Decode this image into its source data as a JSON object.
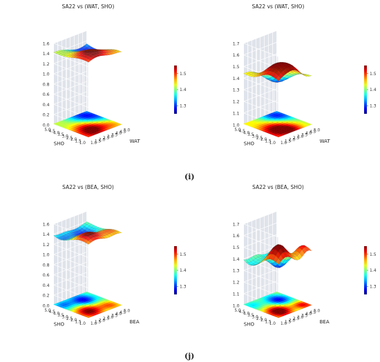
{
  "captions": [
    "(i)",
    "(j)"
  ],
  "chart_data": [
    {
      "type": "surface3d",
      "title": "SA22 vs (WAT, SHO)",
      "xlabel": "WAT",
      "ylabel": "SHO",
      "x_ticks": [
        "1.0",
        "1.5",
        "2.0",
        "2.5",
        "3.0",
        "3.5",
        "4.0",
        "4.5",
        "5.0"
      ],
      "y_ticks": [
        "1.0",
        "1.5",
        "2.0",
        "2.5",
        "3.0",
        "3.5",
        "4.0",
        "4.5",
        "5.0"
      ],
      "z_ticks": [
        "0.0",
        "0.2",
        "0.4",
        "0.6",
        "0.8",
        "1.0",
        "1.2",
        "1.4",
        "1.6"
      ],
      "zlim": [
        0.0,
        1.6
      ],
      "colorbar_ticks": [
        "1.5",
        "1.4",
        "1.3"
      ],
      "colorbar_range": [
        1.25,
        1.55
      ],
      "surface_offset": 1.4,
      "surface_scale": 0.35,
      "hotspots": [
        {
          "x": 2.2,
          "y": 2.0,
          "amp": 1.0,
          "sigma": 1.2
        },
        {
          "x": 4.2,
          "y": 4.0,
          "amp": -0.7,
          "sigma": 1.1
        },
        {
          "x": 4.5,
          "y": 1.5,
          "amp": 0.3,
          "sigma": 0.8
        }
      ]
    },
    {
      "type": "surface3d",
      "title": "SA22 vs (WAT, SHO)",
      "xlabel": "WAT",
      "ylabel": "SHO",
      "x_ticks": [
        "1.0",
        "1.5",
        "2.0",
        "2.5",
        "3.0",
        "3.5",
        "4.0",
        "4.5",
        "5.0"
      ],
      "y_ticks": [
        "1.0",
        "1.5",
        "2.0",
        "2.5",
        "3.0",
        "3.5",
        "4.0",
        "4.5",
        "5.0"
      ],
      "z_ticks": [
        "1.0",
        "1.1",
        "1.2",
        "1.3",
        "1.4",
        "1.5",
        "1.6",
        "1.7"
      ],
      "zlim": [
        1.0,
        1.7
      ],
      "colorbar_ticks": [
        "1.5",
        "1.4",
        "1.3"
      ],
      "colorbar_range": [
        1.25,
        1.55
      ],
      "surface_offset": 1.42,
      "surface_scale": 0.32,
      "hotspots": [
        {
          "x": 2.0,
          "y": 2.2,
          "amp": 1.0,
          "sigma": 1.1
        },
        {
          "x": 4.3,
          "y": 4.2,
          "amp": -0.8,
          "sigma": 1.0
        },
        {
          "x": 3.2,
          "y": 1.2,
          "amp": 0.4,
          "sigma": 0.7
        }
      ]
    },
    {
      "type": "surface3d",
      "title": "SA22 vs (BEA, SHO)",
      "xlabel": "BEA",
      "ylabel": "SHO",
      "x_ticks": [
        "1.0",
        "1.5",
        "2.0",
        "2.5",
        "3.0",
        "3.5",
        "4.0",
        "4.5",
        "5.0"
      ],
      "y_ticks": [
        "1.0",
        "1.5",
        "2.0",
        "2.5",
        "3.0",
        "3.5",
        "4.0",
        "4.5",
        "5.0"
      ],
      "z_ticks": [
        "0.0",
        "0.2",
        "0.4",
        "0.6",
        "0.8",
        "1.0",
        "1.2",
        "1.4",
        "1.6"
      ],
      "zlim": [
        0.0,
        1.6
      ],
      "colorbar_ticks": [
        "1.5",
        "1.4",
        "1.3"
      ],
      "colorbar_range": [
        1.25,
        1.55
      ],
      "surface_offset": 1.4,
      "surface_scale": 0.33,
      "hotspots": [
        {
          "x": 2.0,
          "y": 2.0,
          "amp": 1.0,
          "sigma": 0.9
        },
        {
          "x": 3.5,
          "y": 3.8,
          "amp": -0.8,
          "sigma": 0.8
        },
        {
          "x": 4.3,
          "y": 1.6,
          "amp": 0.5,
          "sigma": 0.7
        },
        {
          "x": 1.5,
          "y": 4.4,
          "amp": -0.5,
          "sigma": 0.7
        }
      ]
    },
    {
      "type": "surface3d",
      "title": "SA22 vs (BEA, SHO)",
      "xlabel": "BEA",
      "ylabel": "SHO",
      "x_ticks": [
        "1.0",
        "1.5",
        "2.0",
        "2.5",
        "3.0",
        "3.5",
        "4.0",
        "4.5",
        "5.0"
      ],
      "y_ticks": [
        "1.0",
        "1.5",
        "2.0",
        "2.5",
        "3.0",
        "3.5",
        "4.0",
        "4.5",
        "5.0"
      ],
      "z_ticks": [
        "1.0",
        "1.1",
        "1.2",
        "1.3",
        "1.4",
        "1.5",
        "1.6",
        "1.7"
      ],
      "zlim": [
        1.0,
        1.7
      ],
      "colorbar_ticks": [
        "1.5",
        "1.4",
        "1.3"
      ],
      "colorbar_range": [
        1.25,
        1.55
      ],
      "surface_offset": 1.42,
      "surface_scale": 0.34,
      "hotspots": [
        {
          "x": 2.0,
          "y": 2.0,
          "amp": 1.0,
          "sigma": 0.8
        },
        {
          "x": 3.8,
          "y": 3.6,
          "amp": -0.9,
          "sigma": 0.8
        },
        {
          "x": 4.5,
          "y": 1.5,
          "amp": 0.6,
          "sigma": 0.6
        },
        {
          "x": 1.4,
          "y": 4.5,
          "amp": -0.4,
          "sigma": 0.7
        }
      ]
    }
  ]
}
